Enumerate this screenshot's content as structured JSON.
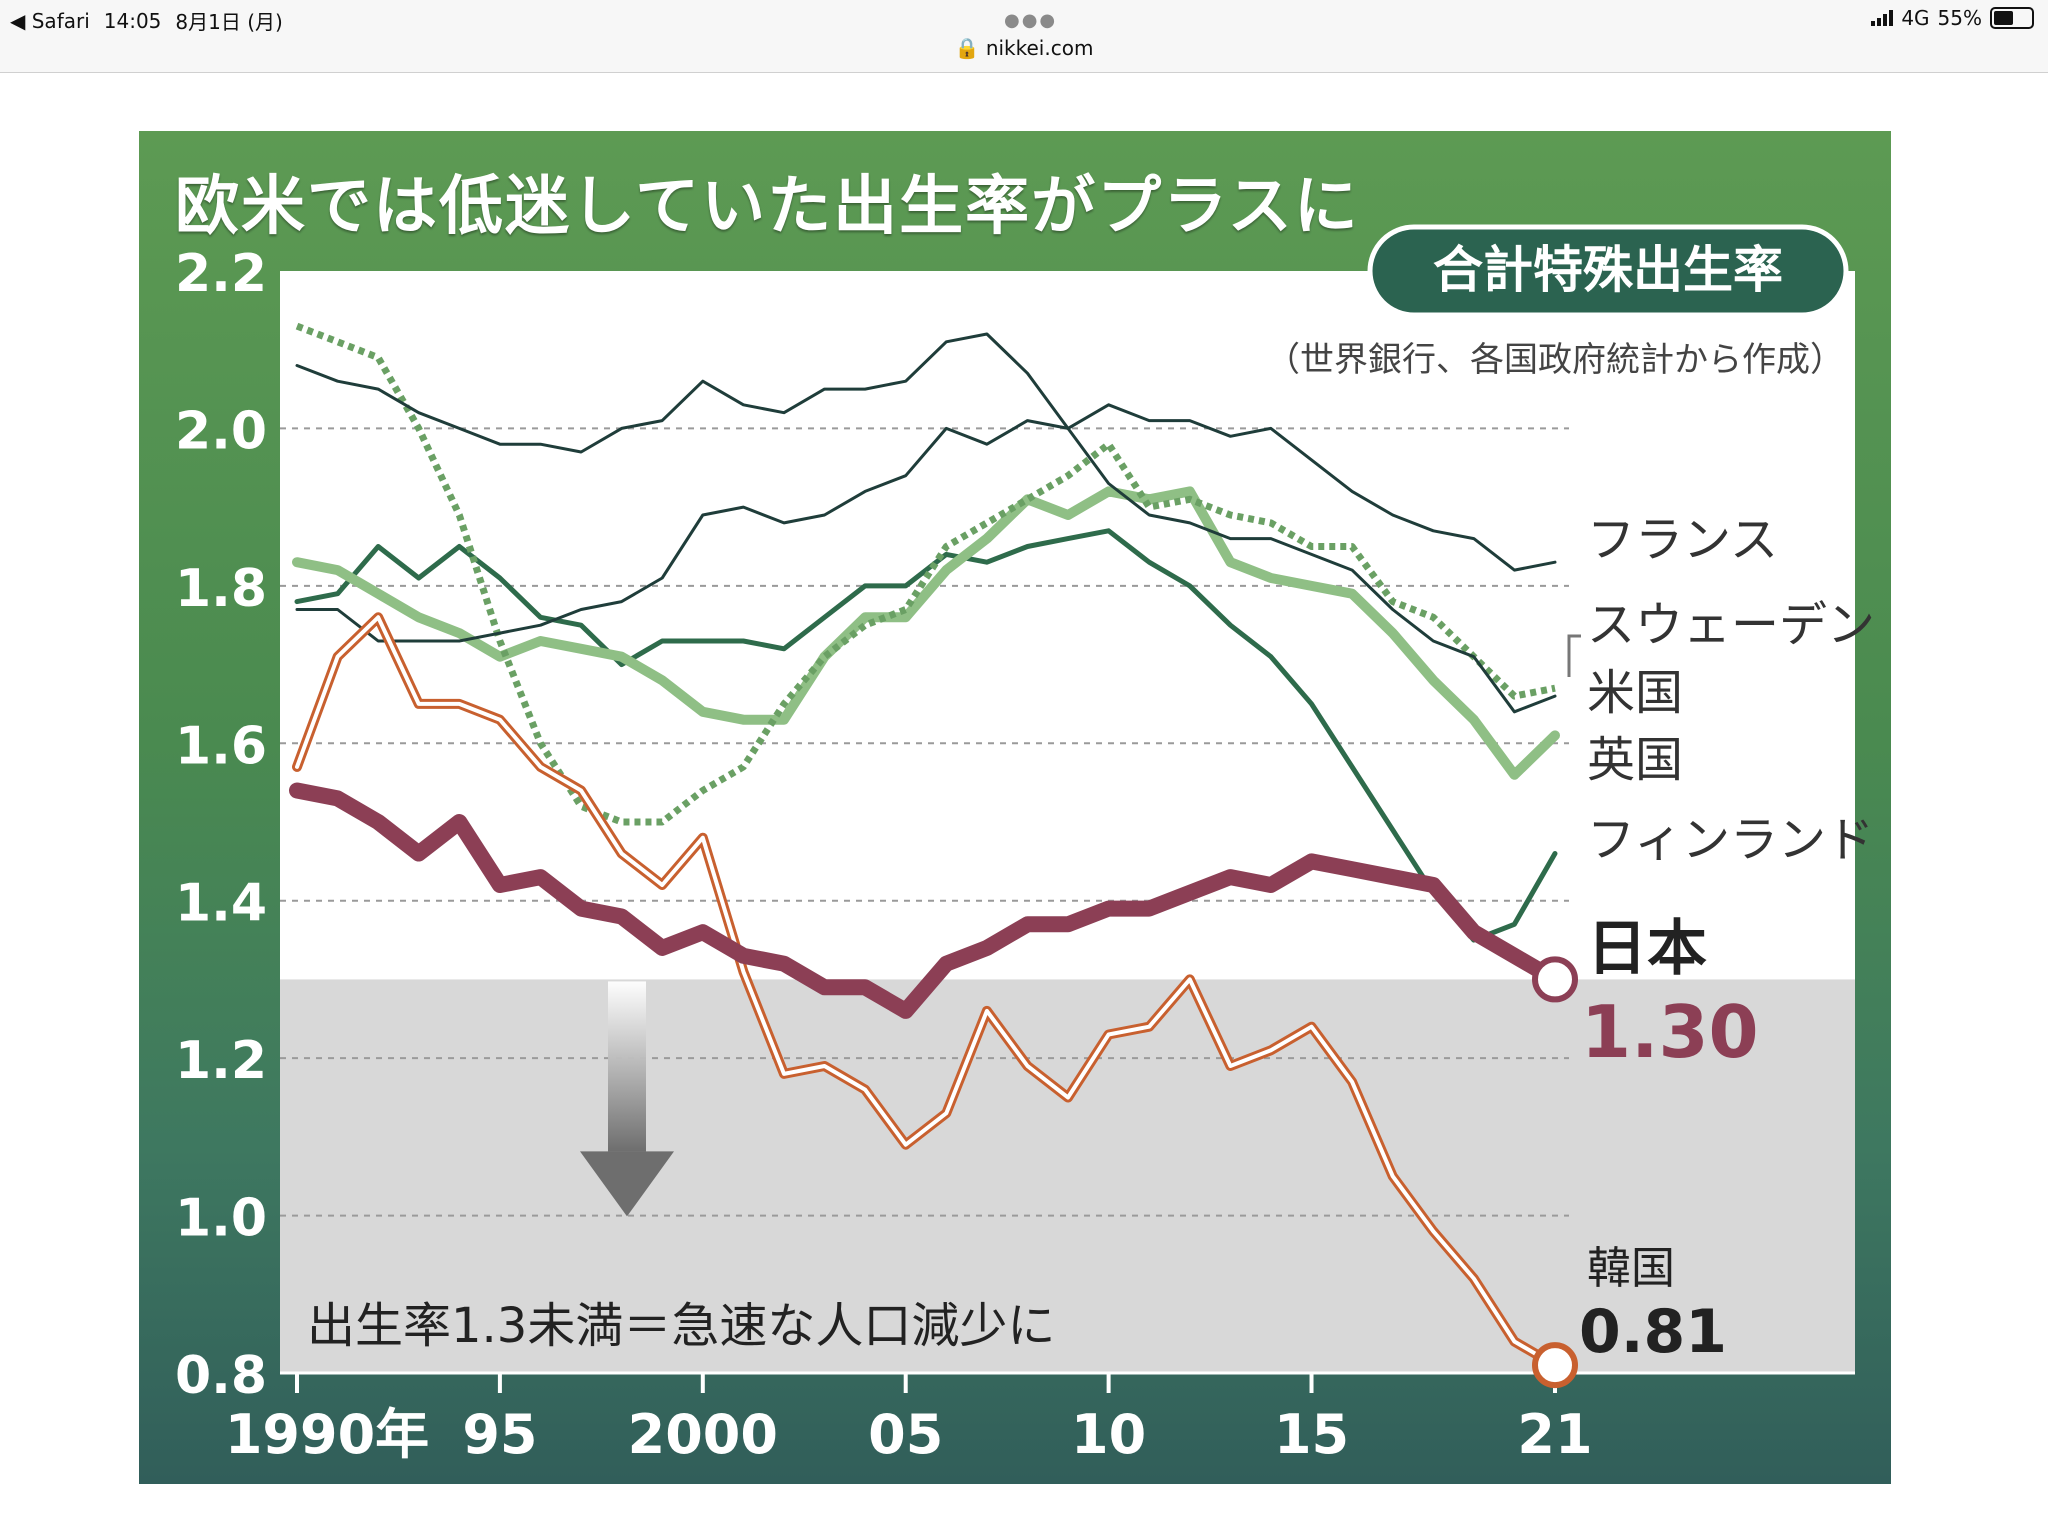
{
  "statusbar": {
    "back_label": "◀ Safari",
    "time": "14:05",
    "date": "8月1日 (月)",
    "url": "nikkei.com",
    "network": "4G",
    "battery": "55%",
    "battery_level": 0.55
  },
  "chart_data": {
    "type": "line",
    "title": "欧米では低迷していた出生率がプラスに",
    "subtitle": "合計特殊出生率",
    "source": "（世界銀行、各国政府統計から作成）",
    "xlim": [
      1990,
      2021
    ],
    "ylim": [
      0.8,
      2.2
    ],
    "x_ticks": [
      1990,
      1995,
      2000,
      2005,
      2010,
      2015,
      2021
    ],
    "x_tick_labels": [
      "1990年",
      "95",
      "2000",
      "05",
      "10",
      "15",
      "21"
    ],
    "y_ticks": [
      0.8,
      1.0,
      1.2,
      1.4,
      1.6,
      1.8,
      2.0,
      2.2
    ],
    "y_tick_labels": [
      "0.8",
      "1.0",
      "1.2",
      "1.4",
      "1.6",
      "1.8",
      "2.0",
      "2.2"
    ],
    "grid": "horizontal dashed",
    "shaded_band": {
      "from": 0.8,
      "to": 1.3
    },
    "annotation": "出生率1.3未満＝急速な人口減少に",
    "x": [
      1990,
      1991,
      1992,
      1993,
      1994,
      1995,
      1996,
      1997,
      1998,
      1999,
      2000,
      2001,
      2002,
      2003,
      2004,
      2005,
      2006,
      2007,
      2008,
      2009,
      2010,
      2011,
      2012,
      2013,
      2014,
      2015,
      2016,
      2017,
      2018,
      2019,
      2020,
      2021
    ],
    "series": [
      {
        "name": "フランス",
        "color": "#1f3d3a",
        "style": "solid",
        "width": 3,
        "values": [
          1.77,
          1.77,
          1.73,
          1.73,
          1.73,
          1.74,
          1.75,
          1.77,
          1.78,
          1.81,
          1.89,
          1.9,
          1.88,
          1.89,
          1.92,
          1.94,
          2.0,
          1.98,
          2.01,
          2.0,
          2.03,
          2.01,
          2.01,
          1.99,
          2.0,
          1.96,
          1.92,
          1.89,
          1.87,
          1.86,
          1.82,
          1.83
        ]
      },
      {
        "name": "スウェーデン",
        "color": "#6aa064",
        "style": "dotted",
        "width": 7,
        "values": [
          2.13,
          2.11,
          2.09,
          2.0,
          1.89,
          1.73,
          1.6,
          1.52,
          1.5,
          1.5,
          1.54,
          1.57,
          1.65,
          1.71,
          1.75,
          1.77,
          1.85,
          1.88,
          1.91,
          1.94,
          1.98,
          1.9,
          1.91,
          1.89,
          1.88,
          1.85,
          1.85,
          1.78,
          1.76,
          1.71,
          1.66,
          1.67
        ]
      },
      {
        "name": "米国",
        "color": "#1f3d3a",
        "style": "solid",
        "width": 3,
        "values": [
          2.08,
          2.06,
          2.05,
          2.02,
          2.0,
          1.98,
          1.98,
          1.97,
          2.0,
          2.01,
          2.06,
          2.03,
          2.02,
          2.05,
          2.05,
          2.06,
          2.11,
          2.12,
          2.07,
          2.0,
          1.93,
          1.89,
          1.88,
          1.86,
          1.86,
          1.84,
          1.82,
          1.77,
          1.73,
          1.71,
          1.64,
          1.66
        ]
      },
      {
        "name": "英国",
        "color": "#8fbf85",
        "style": "solid",
        "width": 10,
        "values": [
          1.83,
          1.82,
          1.79,
          1.76,
          1.74,
          1.71,
          1.73,
          1.72,
          1.71,
          1.68,
          1.64,
          1.63,
          1.63,
          1.71,
          1.76,
          1.76,
          1.82,
          1.86,
          1.91,
          1.89,
          1.92,
          1.91,
          1.92,
          1.83,
          1.81,
          1.8,
          1.79,
          1.74,
          1.68,
          1.63,
          1.56,
          1.61
        ]
      },
      {
        "name": "フィンランド",
        "color": "#2e6b4b",
        "style": "solid",
        "width": 5,
        "values": [
          1.78,
          1.79,
          1.85,
          1.81,
          1.85,
          1.81,
          1.76,
          1.75,
          1.7,
          1.73,
          1.73,
          1.73,
          1.72,
          1.76,
          1.8,
          1.8,
          1.84,
          1.83,
          1.85,
          1.86,
          1.87,
          1.83,
          1.8,
          1.75,
          1.71,
          1.65,
          1.57,
          1.49,
          1.41,
          1.35,
          1.37,
          1.46
        ]
      },
      {
        "name": "日本",
        "color": "#8c3f55",
        "style": "solid",
        "width": 16,
        "values": [
          1.54,
          1.53,
          1.5,
          1.46,
          1.5,
          1.42,
          1.43,
          1.39,
          1.38,
          1.34,
          1.36,
          1.33,
          1.32,
          1.29,
          1.29,
          1.26,
          1.32,
          1.34,
          1.37,
          1.37,
          1.39,
          1.39,
          1.41,
          1.43,
          1.42,
          1.45,
          1.44,
          1.43,
          1.42,
          1.36,
          1.33,
          1.3
        ]
      },
      {
        "name": "韓国",
        "color": "#c8602f",
        "style": "double",
        "width": 10,
        "values": [
          1.57,
          1.71,
          1.76,
          1.65,
          1.65,
          1.63,
          1.57,
          1.54,
          1.46,
          1.42,
          1.48,
          1.31,
          1.18,
          1.19,
          1.16,
          1.09,
          1.13,
          1.26,
          1.19,
          1.15,
          1.23,
          1.24,
          1.3,
          1.19,
          1.21,
          1.24,
          1.17,
          1.05,
          0.98,
          0.92,
          0.84,
          0.81
        ]
      }
    ],
    "series_labels": [
      "フランス",
      "スウェーデン",
      "米国",
      "英国",
      "フィンランド",
      "日本",
      "韓国"
    ],
    "end_values": {
      "日本": "1.30",
      "韓国": "0.81"
    }
  }
}
